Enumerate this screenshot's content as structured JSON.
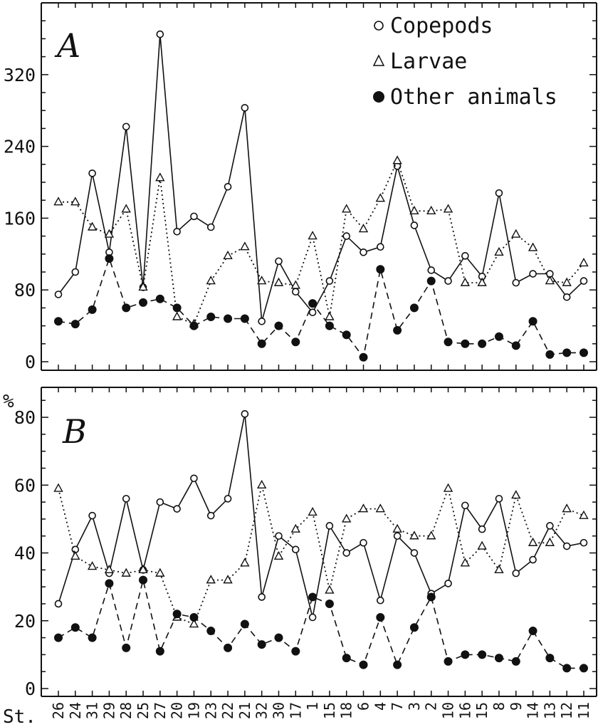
{
  "chart_data": [
    {
      "type": "line",
      "panel_label": "A",
      "categories": [
        "26",
        "24",
        "31",
        "29",
        "28",
        "25",
        "27",
        "20",
        "19",
        "23",
        "22",
        "21",
        "32",
        "30",
        "17",
        "1",
        "15",
        "18",
        "6",
        "4",
        "7",
        "3",
        "2",
        "10",
        "16",
        "15",
        "8",
        "9",
        "14",
        "13",
        "12",
        "11"
      ],
      "ylim": [
        0,
        400
      ],
      "yticks": [
        0,
        80,
        160,
        240,
        320
      ],
      "legend_position": "top-right",
      "series": [
        {
          "name": "Copepods",
          "marker": "open-circle",
          "line": "solid",
          "values": [
            75,
            100,
            210,
            122,
            262,
            83,
            365,
            145,
            162,
            150,
            195,
            283,
            45,
            112,
            78,
            55,
            90,
            140,
            122,
            128,
            218,
            152,
            102,
            90,
            118,
            95,
            188,
            88,
            98,
            98,
            72,
            90
          ]
        },
        {
          "name": "Larvae",
          "marker": "open-triangle",
          "line": "dotted",
          "values": [
            178,
            178,
            150,
            142,
            170,
            83,
            205,
            50,
            42,
            90,
            118,
            128,
            90,
            88,
            85,
            140,
            50,
            170,
            148,
            182,
            224,
            168,
            168,
            170,
            88,
            88,
            122,
            142,
            127,
            90,
            88,
            110
          ]
        },
        {
          "name": "Other animals",
          "marker": "filled-circle",
          "line": "dashed",
          "values": [
            45,
            42,
            58,
            115,
            60,
            66,
            70,
            60,
            40,
            50,
            48,
            48,
            20,
            40,
            22,
            65,
            40,
            30,
            5,
            103,
            35,
            60,
            90,
            22,
            20,
            20,
            28,
            18,
            45,
            8,
            10,
            10
          ]
        }
      ]
    },
    {
      "type": "line",
      "panel_label": "B",
      "ylabel": "%",
      "categories": [
        "26",
        "24",
        "31",
        "29",
        "28",
        "25",
        "27",
        "20",
        "19",
        "23",
        "22",
        "21",
        "32",
        "30",
        "17",
        "1",
        "15",
        "18",
        "6",
        "4",
        "7",
        "3",
        "2",
        "10",
        "16",
        "15",
        "8",
        "9",
        "14",
        "13",
        "12",
        "11"
      ],
      "ylim": [
        0,
        88
      ],
      "yticks": [
        0,
        20,
        40,
        60,
        80
      ],
      "series": [
        {
          "name": "Copepods",
          "marker": "open-circle",
          "line": "solid",
          "values": [
            25,
            41,
            51,
            34,
            56,
            35,
            55,
            53,
            62,
            51,
            56,
            81,
            27,
            45,
            41,
            21,
            48,
            40,
            43,
            26,
            45,
            40,
            28,
            31,
            54,
            47,
            56,
            34,
            38,
            48,
            42,
            43
          ]
        },
        {
          "name": "Larvae",
          "marker": "open-triangle",
          "line": "dotted",
          "values": [
            59,
            39,
            36,
            35,
            34,
            35,
            34,
            21,
            19,
            32,
            32,
            37,
            60,
            39,
            47,
            52,
            29,
            50,
            53,
            53,
            47,
            45,
            45,
            59,
            37,
            42,
            35,
            57,
            43,
            43,
            53,
            51
          ]
        },
        {
          "name": "Other animals",
          "marker": "filled-circle",
          "line": "dashed",
          "values": [
            15,
            18,
            15,
            31,
            12,
            32,
            11,
            22,
            21,
            17,
            12,
            19,
            13,
            15,
            11,
            27,
            25,
            9,
            7,
            21,
            7,
            18,
            27,
            8,
            10,
            10,
            9,
            8,
            17,
            9,
            6,
            6
          ]
        }
      ]
    }
  ],
  "x_axis_prefix": "St."
}
